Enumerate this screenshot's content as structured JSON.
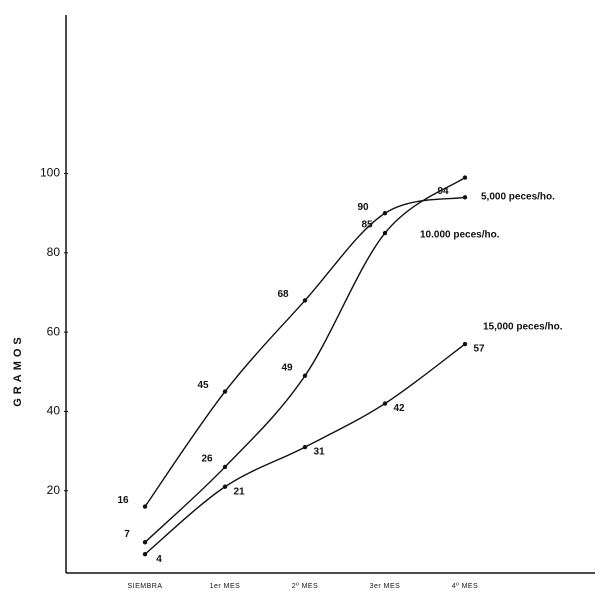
{
  "chart_data": {
    "type": "line",
    "y_label": "GRAMOS",
    "categories": [
      "SIEMBRA",
      "1er MES",
      "2º MES",
      "3er MES",
      "4º MES"
    ],
    "ylim": [
      0,
      140
    ],
    "yticks": [
      20,
      40,
      60,
      80,
      100
    ],
    "series": [
      {
        "name": "5,000 peces/ho.",
        "color": "#111111",
        "values": [
          16,
          45,
          68,
          90,
          94
        ]
      },
      {
        "name": "10.000 peces/ho.",
        "color": "#111111",
        "values": [
          7,
          26,
          49,
          85,
          99
        ],
        "value_labels": [
          "7",
          "26",
          "49",
          "85",
          null
        ]
      },
      {
        "name": "15,000 peces/ho.",
        "color": "#111111",
        "values": [
          4,
          21,
          31,
          42,
          57
        ]
      }
    ]
  }
}
